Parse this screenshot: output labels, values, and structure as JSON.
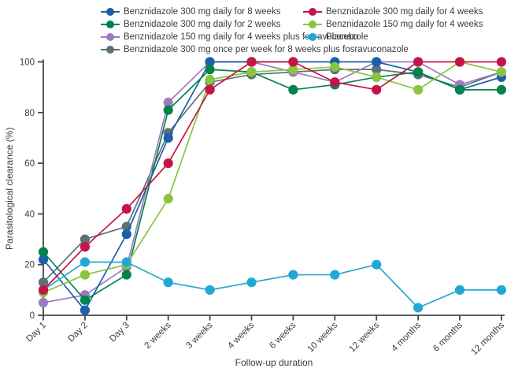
{
  "figure": {
    "background": "#ffffff",
    "axis_color": "#474747",
    "text_color": "#3d3d3d"
  },
  "chart_data": {
    "type": "line",
    "title": "",
    "xlabel": "Follow-up duration",
    "ylabel": "Parasitological clearance (%)",
    "ylim": [
      0,
      100
    ],
    "yticks": [
      0,
      20,
      40,
      60,
      80,
      100
    ],
    "grid": "off",
    "legend_position": "top",
    "marker": "circle",
    "categories": [
      "Day 1",
      "Day 2",
      "Day 3",
      "2 weeks",
      "3 weeks",
      "4 weeks",
      "6 weeks",
      "10 weeks",
      "12 weeks",
      "4 months",
      "6 months",
      "12 months"
    ],
    "series": [
      {
        "name": "Benznidazole 300 mg daily for 8 weeks",
        "color": "#1b5faa",
        "values": [
          22,
          2,
          32,
          70,
          100,
          100,
          100,
          100,
          100,
          96,
          89,
          94
        ]
      },
      {
        "name": "Benznidazole 300 mg daily for 4 weeks",
        "color": "#c41547",
        "values": [
          10,
          27,
          42,
          60,
          89,
          100,
          100,
          92,
          89,
          100,
          100,
          100
        ]
      },
      {
        "name": "Benznidazole 300 mg daily for 2 weeks",
        "color": "#00834c",
        "values": [
          25,
          6,
          16,
          81,
          97,
          96,
          89,
          91,
          94,
          96,
          89,
          89
        ]
      },
      {
        "name": "Benznidazole 150 mg daily for 4 weeks",
        "color": "#8bc540",
        "values": [
          9,
          16,
          20,
          46,
          93,
          96,
          97,
          98,
          94,
          89,
          100,
          96
        ]
      },
      {
        "name": "Benznidazole 150 mg daily for 4 weeks plus fosravuconazole",
        "color": "#9c7cbe",
        "values": [
          5,
          8,
          19,
          84,
          100,
          100,
          96,
          92,
          100,
          100,
          91,
          96
        ]
      },
      {
        "name": "Placebo",
        "color": "#22a8d4",
        "values": [
          10,
          21,
          21,
          13,
          10,
          13,
          16,
          16,
          20,
          3,
          10,
          10
        ]
      },
      {
        "name": "Benznidazole 300 mg once per week for 8 weeks plus fosravuconazole",
        "color": "#5d7078",
        "values": [
          13,
          30,
          35,
          72,
          92,
          95,
          96,
          97,
          97,
          95,
          90,
          96
        ]
      }
    ],
    "z_order": [
      6,
      4,
      0,
      2,
      3,
      5,
      1
    ]
  }
}
